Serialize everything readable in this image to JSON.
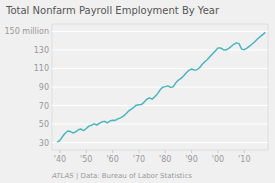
{
  "chart_data": {
    "type": "line",
    "title": "Total Nonfarm Payroll Employment By Year",
    "annotations": [
      "ATLAS",
      " | Data: Bureau of Labor Statistics"
    ],
    "color": "#4ab5c0",
    "grid": true,
    "xlim": [
      1937,
      2019
    ],
    "ylim": [
      22,
      158
    ],
    "xticks": [
      {
        "value": 1940,
        "label": "'40"
      },
      {
        "value": 1950,
        "label": "'50"
      },
      {
        "value": 1960,
        "label": "'60"
      },
      {
        "value": 1970,
        "label": "'70"
      },
      {
        "value": 1980,
        "label": "'80"
      },
      {
        "value": 1990,
        "label": "'90"
      },
      {
        "value": 2000,
        "label": "'00"
      },
      {
        "value": 2010,
        "label": "'10"
      }
    ],
    "yticks": [
      30,
      50,
      70,
      90,
      110,
      130,
      {
        "value": 150,
        "label": "150 million"
      }
    ],
    "x": [
      1939,
      1940,
      1941,
      1942,
      1943,
      1944,
      1945,
      1946,
      1947,
      1948,
      1949,
      1950,
      1951,
      1952,
      1953,
      1954,
      1955,
      1956,
      1957,
      1958,
      1959,
      1960,
      1961,
      1962,
      1963,
      1964,
      1965,
      1966,
      1967,
      1968,
      1969,
      1970,
      1971,
      1972,
      1973,
      1974,
      1975,
      1976,
      1977,
      1978,
      1979,
      1980,
      1981,
      1982,
      1983,
      1984,
      1985,
      1986,
      1987,
      1988,
      1989,
      1990,
      1991,
      1992,
      1993,
      1994,
      1995,
      1996,
      1997,
      1998,
      1999,
      2000,
      2001,
      2002,
      2003,
      2004,
      2005,
      2006,
      2007,
      2008,
      2009,
      2010,
      2011,
      2012,
      2013,
      2014,
      2015,
      2016,
      2017,
      2018
    ],
    "values": [
      30.6,
      32.4,
      36.6,
      40.1,
      42.5,
      41.9,
      40.4,
      41.6,
      43.9,
      44.6,
      43.0,
      45.2,
      47.8,
      48.8,
      50.2,
      49.0,
      50.7,
      52.4,
      52.9,
      51.4,
      53.3,
      54.2,
      53.9,
      55.6,
      56.7,
      58.3,
      60.8,
      63.9,
      65.9,
      67.9,
      70.4,
      70.9,
      71.2,
      73.7,
      76.8,
      78.3,
      76.9,
      79.4,
      82.5,
      86.7,
      89.8,
      90.4,
      91.2,
      89.6,
      90.2,
      94.5,
      97.5,
      99.3,
      102.1,
      105.3,
      108.0,
      109.4,
      108.4,
      108.6,
      110.8,
      114.2,
      117.2,
      119.7,
      122.8,
      125.9,
      128.9,
      132.0,
      132.1,
      130.3,
      129.9,
      131.4,
      133.7,
      136.1,
      137.6,
      136.8,
      130.9,
      130.3,
      131.9,
      134.2,
      136.4,
      138.9,
      141.8,
      144.3,
      146.6,
      149.0
    ]
  }
}
